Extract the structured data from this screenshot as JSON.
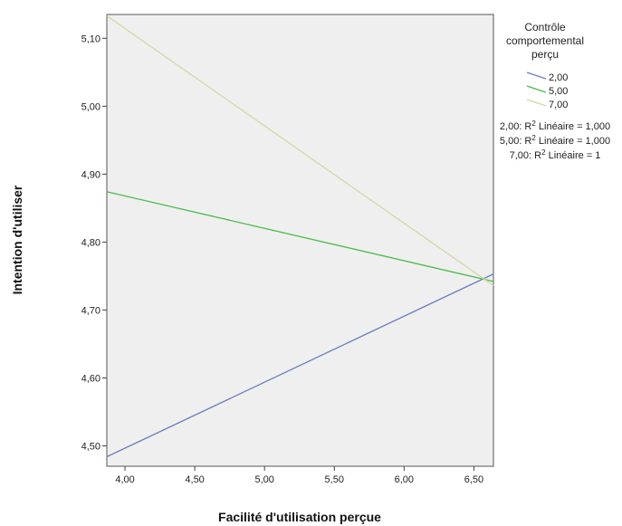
{
  "chart_data": {
    "type": "line",
    "xlabel": "Facilité d'utilisation perçue",
    "ylabel": "Intention d'utiliser",
    "xlim": [
      3.87,
      6.64
    ],
    "ylim": [
      4.47,
      5.135
    ],
    "x_ticks": [
      "4,00",
      "4,50",
      "5,00",
      "5,50",
      "6,00",
      "6,50"
    ],
    "x_tick_values": [
      4.0,
      4.5,
      5.0,
      5.5,
      6.0,
      6.5
    ],
    "y_ticks": [
      "4,50",
      "4,60",
      "4,70",
      "4,80",
      "4,90",
      "5,00",
      "5,10"
    ],
    "y_tick_values": [
      4.5,
      4.6,
      4.7,
      4.8,
      4.9,
      5.0,
      5.1
    ],
    "grid": false,
    "plot_background": "#efefef",
    "legend": {
      "title_lines": [
        "Contrôle",
        "comportemental",
        "perçu"
      ],
      "placement": "right",
      "fit_lines": [
        {
          "prefix": "2,00: R",
          "sup": "2",
          "suffix": " Linéaire = 1,000"
        },
        {
          "prefix": "5,00: R",
          "sup": "2",
          "suffix": " Linéaire = 1,000"
        },
        {
          "prefix": "7,00: R",
          "sup": "2",
          "suffix": " Linéaire = 1"
        }
      ]
    },
    "series": [
      {
        "name": "2,00",
        "color": "#6b7ec1",
        "x": [
          3.87,
          6.64
        ],
        "y": [
          4.484,
          4.753
        ]
      },
      {
        "name": "5,00",
        "color": "#4bbb4b",
        "x": [
          3.87,
          6.64
        ],
        "y": [
          4.874,
          4.742
        ]
      },
      {
        "name": "7,00",
        "color": "#d2d9a6",
        "x": [
          3.87,
          6.64
        ],
        "y": [
          5.133,
          4.736
        ]
      }
    ]
  }
}
